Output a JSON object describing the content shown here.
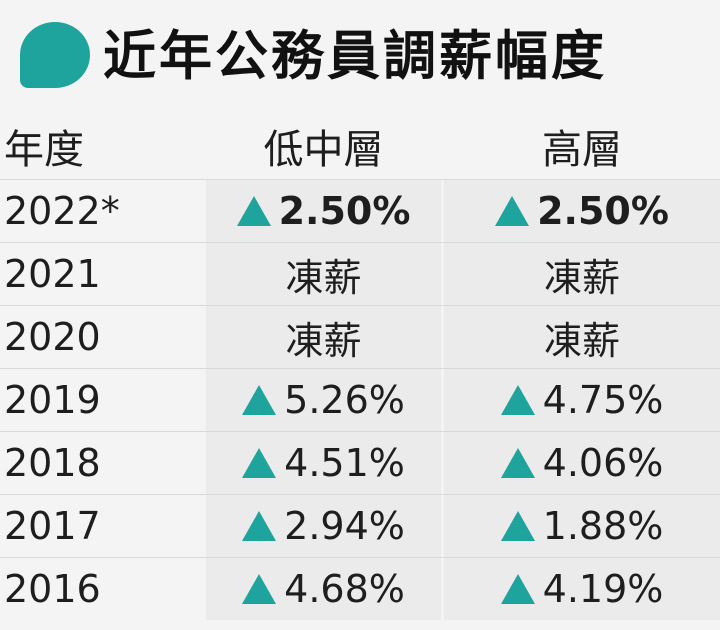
{
  "title": "近年公務員調薪幅度",
  "colors": {
    "accent": "#1fa39d",
    "increase_marker": "#1fa39d"
  },
  "chart_data": {
    "type": "table",
    "columns": [
      "年度",
      "低中層",
      "高層"
    ],
    "rows": [
      {
        "year": "2022*",
        "low_mid": "2.50%",
        "high": "2.50%",
        "increase_low": true,
        "increase_high": true,
        "bold": true
      },
      {
        "year": "2021",
        "low_mid": "凍薪",
        "high": "凍薪",
        "increase_low": false,
        "increase_high": false,
        "bold": false
      },
      {
        "year": "2020",
        "low_mid": "凍薪",
        "high": "凍薪",
        "increase_low": false,
        "increase_high": false,
        "bold": false
      },
      {
        "year": "2019",
        "low_mid": "5.26%",
        "high": "4.75%",
        "increase_low": true,
        "increase_high": true,
        "bold": false
      },
      {
        "year": "2018",
        "low_mid": "4.51%",
        "high": "4.06%",
        "increase_low": true,
        "increase_high": true,
        "bold": false
      },
      {
        "year": "2017",
        "low_mid": "2.94%",
        "high": "1.88%",
        "increase_low": true,
        "increase_high": true,
        "bold": false
      },
      {
        "year": "2016",
        "low_mid": "4.68%",
        "high": "4.19%",
        "increase_low": true,
        "increase_high": true,
        "bold": false
      }
    ]
  }
}
